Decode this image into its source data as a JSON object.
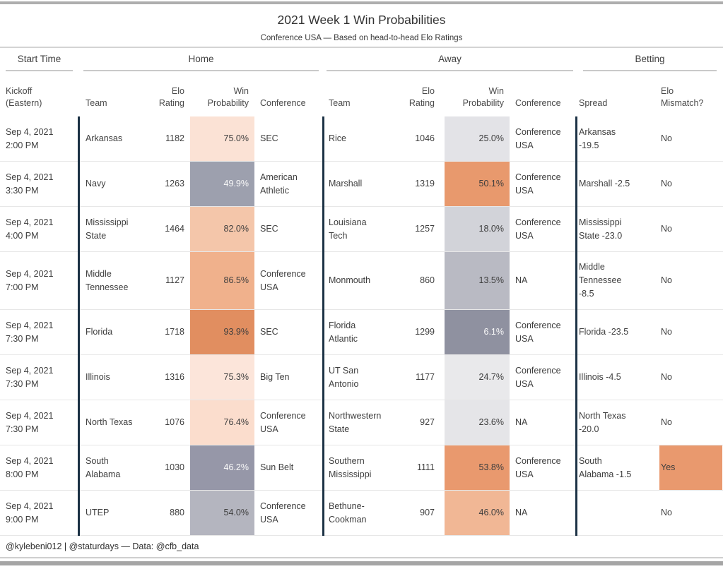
{
  "title": "2021 Week 1 Win Probabilities",
  "subtitle": "Conference USA — Based on head-to-head Elo Ratings",
  "footer": "@kylebeni012 | @staturdays — Data: @cfb_data",
  "groups": {
    "start_time": "Start Time",
    "home": "Home",
    "away": "Away",
    "betting": "Betting"
  },
  "columns": {
    "kickoff": "Kickoff (Eastern)",
    "team": "Team",
    "elo_rating": "Elo Rating",
    "win_probability": "Win Probability",
    "conference": "Conference",
    "spread": "Spread",
    "elo_mismatch": "Elo Mismatch?"
  },
  "colors": {
    "separator_navy": "#1c3245",
    "accent_orange_high": "#e18e60",
    "accent_gray_low": "#8f91a0",
    "mismatch_yes_bg": "#e9996e",
    "row_border": "#e7e7e7"
  },
  "chart_data": {
    "type": "table",
    "title": "2021 Week 1 Win Probabilities",
    "subtitle": "Conference USA — Based on head-to-head Elo Ratings",
    "column_groups": [
      "Start Time",
      "Home",
      "Away",
      "Betting"
    ],
    "columns": [
      "Kickoff (Eastern)",
      "Team",
      "Elo Rating",
      "Win Probability",
      "Conference",
      "Team",
      "Elo Rating",
      "Win Probability",
      "Conference",
      "Spread",
      "Elo Mismatch?"
    ],
    "rows": [
      {
        "kickoff": "Sep 4, 2021 2:00 PM",
        "home": {
          "team": "Arkansas",
          "elo": "1182",
          "win_prob": "75.0%",
          "conference": "SEC",
          "win_bg": "#fbe2d5",
          "win_fg": "#3e3e3e"
        },
        "away": {
          "team": "Rice",
          "elo": "1046",
          "win_prob": "25.0%",
          "conference": "Conference USA",
          "win_bg": "#e3e3e7",
          "win_fg": "#3e3e3e"
        },
        "spread": "Arkansas -19.5",
        "mismatch": "No",
        "mismatch_bg": ""
      },
      {
        "kickoff": "Sep 4, 2021 3:30 PM",
        "home": {
          "team": "Navy",
          "elo": "1263",
          "win_prob": "49.9%",
          "conference": "American Athletic",
          "win_bg": "#9da0ae",
          "win_fg": "#fafafa"
        },
        "away": {
          "team": "Marshall",
          "elo": "1319",
          "win_prob": "50.1%",
          "conference": "Conference USA",
          "win_bg": "#e8996d",
          "win_fg": "#3e3e3e"
        },
        "spread": "Marshall -2.5",
        "mismatch": "No",
        "mismatch_bg": ""
      },
      {
        "kickoff": "Sep 4, 2021 4:00 PM",
        "home": {
          "team": "Mississippi State",
          "elo": "1464",
          "win_prob": "82.0%",
          "conference": "SEC",
          "win_bg": "#f4c6aa",
          "win_fg": "#3e3e3e"
        },
        "away": {
          "team": "Louisiana Tech",
          "elo": "1257",
          "win_prob": "18.0%",
          "conference": "Conference USA",
          "win_bg": "#d2d3d9",
          "win_fg": "#3e3e3e"
        },
        "spread": "Mississippi State -23.0",
        "mismatch": "No",
        "mismatch_bg": ""
      },
      {
        "kickoff": "Sep 4, 2021 7:00 PM",
        "home": {
          "team": "Middle Tennessee",
          "elo": "1127",
          "win_prob": "86.5%",
          "conference": "Conference USA",
          "win_bg": "#f0b18c",
          "win_fg": "#3e3e3e"
        },
        "away": {
          "team": "Monmouth",
          "elo": "860",
          "win_prob": "13.5%",
          "conference": "NA",
          "win_bg": "#b9bac3",
          "win_fg": "#3e3e3e"
        },
        "spread": "Middle Tennessee -8.5",
        "mismatch": "No",
        "mismatch_bg": ""
      },
      {
        "kickoff": "Sep 4, 2021 7:30 PM",
        "home": {
          "team": "Florida",
          "elo": "1718",
          "win_prob": "93.9%",
          "conference": "SEC",
          "win_bg": "#e18e60",
          "win_fg": "#3e3e3e"
        },
        "away": {
          "team": "Florida Atlantic",
          "elo": "1299",
          "win_prob": "6.1%",
          "conference": "Conference USA",
          "win_bg": "#8f91a0",
          "win_fg": "#fafafa"
        },
        "spread": "Florida -23.5",
        "mismatch": "No",
        "mismatch_bg": ""
      },
      {
        "kickoff": "Sep 4, 2021 7:30 PM",
        "home": {
          "team": "Illinois",
          "elo": "1316",
          "win_prob": "75.3%",
          "conference": "Big Ten",
          "win_bg": "#fce5da",
          "win_fg": "#3e3e3e"
        },
        "away": {
          "team": "UT San Antonio",
          "elo": "1177",
          "win_prob": "24.7%",
          "conference": "Conference USA",
          "win_bg": "#e9e9eb",
          "win_fg": "#3e3e3e"
        },
        "spread": "Illinois -4.5",
        "mismatch": "No",
        "mismatch_bg": ""
      },
      {
        "kickoff": "Sep 4, 2021 7:30 PM",
        "home": {
          "team": "North Texas",
          "elo": "1076",
          "win_prob": "76.4%",
          "conference": "Conference USA",
          "win_bg": "#fbddcd",
          "win_fg": "#3e3e3e"
        },
        "away": {
          "team": "Northwestern State",
          "elo": "927",
          "win_prob": "23.6%",
          "conference": "NA",
          "win_bg": "#e5e5e8",
          "win_fg": "#3e3e3e"
        },
        "spread": "North Texas -20.0",
        "mismatch": "No",
        "mismatch_bg": ""
      },
      {
        "kickoff": "Sep 4, 2021 8:00 PM",
        "home": {
          "team": "South Alabama",
          "elo": "1030",
          "win_prob": "46.2%",
          "conference": "Sun Belt",
          "win_bg": "#9697a8",
          "win_fg": "#fafafa"
        },
        "away": {
          "team": "Southern Mississippi",
          "elo": "1111",
          "win_prob": "53.8%",
          "conference": "Conference USA",
          "win_bg": "#e9996e",
          "win_fg": "#3e3e3e"
        },
        "spread": "South Alabama -1.5",
        "mismatch": "Yes",
        "mismatch_bg": "#e9996e"
      },
      {
        "kickoff": "Sep 4, 2021 9:00 PM",
        "home": {
          "team": "UTEP",
          "elo": "880",
          "win_prob": "54.0%",
          "conference": "Conference USA",
          "win_bg": "#b4b5bf",
          "win_fg": "#3e3e3e"
        },
        "away": {
          "team": "Bethune-Cookman",
          "elo": "907",
          "win_prob": "46.0%",
          "conference": "NA",
          "win_bg": "#f1b795",
          "win_fg": "#3e3e3e"
        },
        "spread": "",
        "mismatch": "No",
        "mismatch_bg": ""
      }
    ]
  }
}
